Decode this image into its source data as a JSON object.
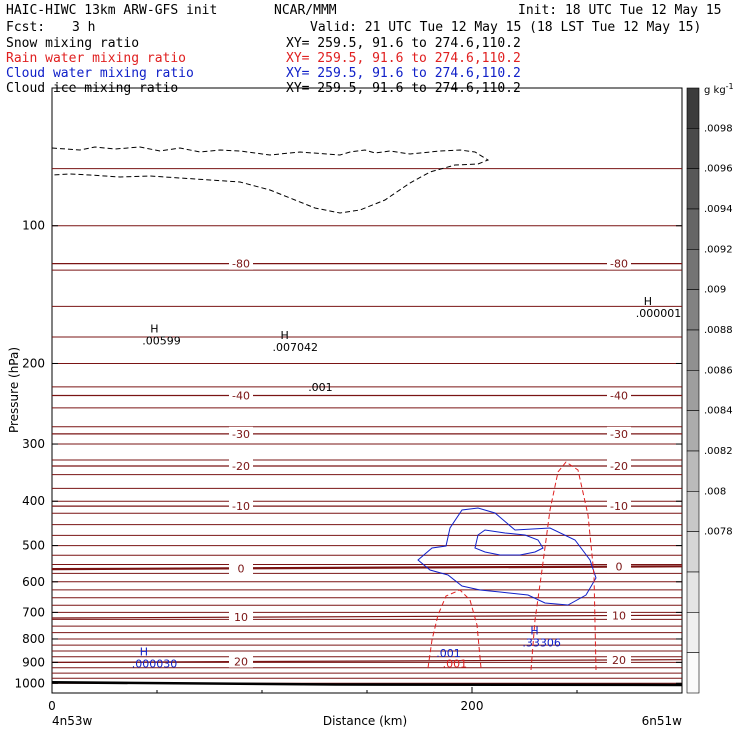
{
  "header": {
    "title": "HAIC-HIWC 13km ARW-GFS init",
    "org": "NCAR/MMM",
    "init": "Init: 18 UTC Tue 12 May 15",
    "fcst_label": "Fcst:",
    "fcst_value": "3 h",
    "valid": "Valid: 21 UTC Tue 12 May 15 (18 LST Tue 12 May 15)"
  },
  "fields": [
    {
      "name": "Snow mixing ratio",
      "xy": "XY= 259.5, 91.6 to 274.6,110.2",
      "color": "#000000"
    },
    {
      "name": "Rain water mixing ratio",
      "xy": "XY= 259.5, 91.6 to 274.6,110.2",
      "color": "#e02020"
    },
    {
      "name": "Cloud water mixing ratio",
      "xy": "XY= 259.5, 91.6 to 274.6,110.2",
      "color": "#1020c8"
    },
    {
      "name": "Cloud ice mixing ratio",
      "xy": "XY= 259.5, 91.6 to 274.6,110.2",
      "color": "#000000"
    }
  ],
  "colorbar": {
    "unit": "g kg",
    "unit_exp": "-1",
    "ticks": [
      ".0098",
      ".0096",
      ".0094",
      ".0092",
      ".009",
      ".0088",
      ".0086",
      ".0084",
      ".0082",
      ".008",
      ".0078"
    ],
    "gray_hex": [
      "#3c3c3c",
      "#4a4a4a",
      "#585858",
      "#666666",
      "#747474",
      "#828282",
      "#909090",
      "#9e9e9e",
      "#acacac",
      "#bababa",
      "#c8c8c8",
      "#d6d6d6",
      "#e4e4e4",
      "#f0f0f0",
      "#fafafa"
    ]
  },
  "chart_data": {
    "type": "line",
    "title": "",
    "xlabel": "Distance (km)",
    "ylabel": "Pressure (hPa)",
    "xlim": [
      0,
      300
    ],
    "ylim": [
      1050,
      50
    ],
    "y_scale": "log",
    "x_ticks": [
      0,
      200
    ],
    "y_ticks": [
      100,
      200,
      300,
      400,
      500,
      600,
      700,
      800,
      900,
      1000
    ],
    "x_end_labels": [
      "4n53w",
      "6n51w"
    ],
    "temperature_contours": [
      {
        "label": "-80",
        "left_p": 121,
        "right_p": 121
      },
      {
        "label": "-40",
        "left_p": 235,
        "right_p": 235
      },
      {
        "label": "-30",
        "left_p": 285,
        "right_p": 285
      },
      {
        "label": "-20",
        "left_p": 335,
        "right_p": 335
      },
      {
        "label": "-10",
        "left_p": 410,
        "right_p": 410
      },
      {
        "label": "0",
        "left_p": 563,
        "right_p": 555
      },
      {
        "label": "10",
        "left_p": 720,
        "right_p": 710
      },
      {
        "label": "20",
        "left_p": 900,
        "right_p": 888
      }
    ],
    "terrain_p": [
      995,
      1006,
      1008
    ]
  },
  "annotations": [
    {
      "h": "H",
      "value": ".00599",
      "color": "#000000",
      "x_km": 43,
      "p": 178
    },
    {
      "h": "H",
      "value": ".007042",
      "color": "#000000",
      "x_km": 105,
      "p": 184
    },
    {
      "h": "",
      "value": ".001",
      "color": "#000000",
      "x_km": 122,
      "p": 225
    },
    {
      "h": "H",
      "value": ".000001",
      "color": "#000000",
      "x_km": 278,
      "p": 155
    },
    {
      "h": "H",
      "value": ".33306",
      "color": "#1020c8",
      "x_km": 224,
      "p": 815
    },
    {
      "h": "",
      "value": ".001",
      "color": "#1020c8",
      "x_km": 183,
      "p": 858
    },
    {
      "h": "",
      "value": ".001",
      "color": "#e02020",
      "x_km": 186,
      "p": 905
    },
    {
      "h": "H",
      "value": ".000030",
      "color": "#1020c8",
      "x_km": 38,
      "p": 905
    }
  ]
}
